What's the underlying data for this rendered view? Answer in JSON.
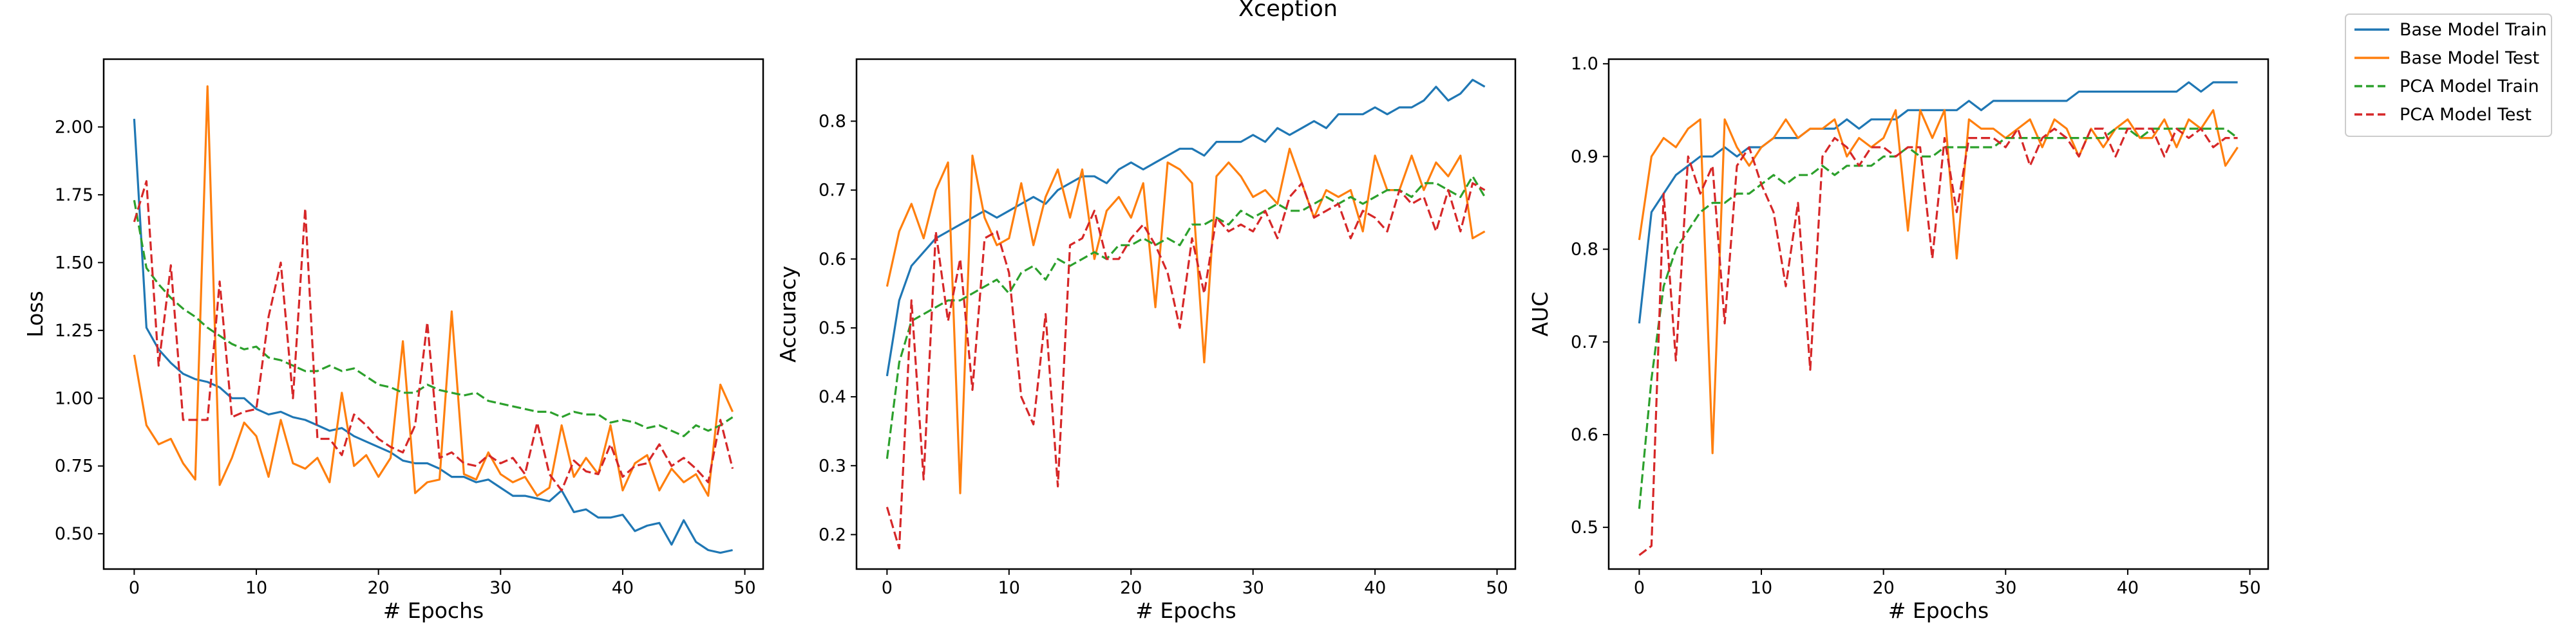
{
  "figure": {
    "title": "Xception"
  },
  "legend": {
    "placement": "outside-top-right",
    "items": [
      {
        "label": "Base Model Train",
        "color": "#1f77b4",
        "dashed": false
      },
      {
        "label": "Base Model Test",
        "color": "#ff7f0e",
        "dashed": false
      },
      {
        "label": "PCA Model Train",
        "color": "#2ca02c",
        "dashed": true
      },
      {
        "label": "PCA Model Test",
        "color": "#d62728",
        "dashed": true
      }
    ]
  },
  "chart_data": [
    {
      "type": "line",
      "title": "",
      "xlabel": "# Epochs",
      "ylabel": "Loss",
      "xlim": [
        -2.5,
        51.5
      ],
      "ylim": [
        0.37,
        2.25
      ],
      "xticks": [
        0,
        10,
        20,
        30,
        40,
        50
      ],
      "yticks": [
        0.5,
        0.75,
        1.0,
        1.25,
        1.5,
        1.75,
        2.0
      ],
      "ytick_labels": [
        "0.50",
        "0.75",
        "1.00",
        "1.25",
        "1.50",
        "1.75",
        "2.00"
      ],
      "grid": false,
      "series": [
        {
          "name": "Base Model Train",
          "color": "#1f77b4",
          "dashed": false,
          "values": [
            2.03,
            1.26,
            1.18,
            1.13,
            1.09,
            1.07,
            1.06,
            1.04,
            1.0,
            1.0,
            0.96,
            0.94,
            0.95,
            0.93,
            0.92,
            0.9,
            0.88,
            0.89,
            0.86,
            0.84,
            0.82,
            0.8,
            0.77,
            0.76,
            0.76,
            0.74,
            0.71,
            0.71,
            0.69,
            0.7,
            0.67,
            0.64,
            0.64,
            0.63,
            0.62,
            0.66,
            0.58,
            0.59,
            0.56,
            0.56,
            0.57,
            0.51,
            0.53,
            0.54,
            0.46,
            0.55,
            0.47,
            0.44,
            0.43,
            0.44
          ]
        },
        {
          "name": "Base Model Test",
          "color": "#ff7f0e",
          "dashed": false,
          "values": [
            1.16,
            0.9,
            0.83,
            0.85,
            0.76,
            0.7,
            2.15,
            0.68,
            0.78,
            0.91,
            0.86,
            0.71,
            0.92,
            0.76,
            0.74,
            0.78,
            0.69,
            1.02,
            0.75,
            0.79,
            0.71,
            0.78,
            1.21,
            0.65,
            0.69,
            0.7,
            1.32,
            0.72,
            0.7,
            0.8,
            0.72,
            0.69,
            0.71,
            0.64,
            0.67,
            0.9,
            0.71,
            0.78,
            0.72,
            0.9,
            0.66,
            0.76,
            0.79,
            0.66,
            0.74,
            0.69,
            0.72,
            0.64,
            1.05,
            0.95
          ]
        },
        {
          "name": "PCA Model Train",
          "color": "#2ca02c",
          "dashed": true,
          "values": [
            1.73,
            1.48,
            1.42,
            1.37,
            1.33,
            1.3,
            1.26,
            1.23,
            1.2,
            1.18,
            1.19,
            1.15,
            1.14,
            1.12,
            1.1,
            1.1,
            1.12,
            1.1,
            1.11,
            1.08,
            1.05,
            1.04,
            1.02,
            1.02,
            1.05,
            1.03,
            1.02,
            1.01,
            1.02,
            0.99,
            0.98,
            0.97,
            0.96,
            0.95,
            0.95,
            0.93,
            0.95,
            0.94,
            0.94,
            0.91,
            0.92,
            0.91,
            0.89,
            0.9,
            0.88,
            0.86,
            0.9,
            0.88,
            0.9,
            0.93
          ]
        },
        {
          "name": "PCA Model Test",
          "color": "#d62728",
          "dashed": true,
          "values": [
            1.65,
            1.8,
            1.12,
            1.49,
            0.92,
            0.92,
            0.92,
            1.43,
            0.93,
            0.95,
            0.96,
            1.3,
            1.5,
            1.0,
            1.7,
            0.85,
            0.85,
            0.79,
            0.94,
            0.9,
            0.85,
            0.82,
            0.8,
            0.9,
            1.28,
            0.78,
            0.8,
            0.76,
            0.75,
            0.79,
            0.76,
            0.78,
            0.72,
            0.91,
            0.72,
            0.66,
            0.77,
            0.73,
            0.72,
            0.83,
            0.71,
            0.75,
            0.76,
            0.83,
            0.75,
            0.78,
            0.74,
            0.69,
            0.92,
            0.74
          ]
        }
      ]
    },
    {
      "type": "line",
      "title": "",
      "xlabel": "# Epochs",
      "ylabel": "Accuracy",
      "xlim": [
        -2.5,
        51.5
      ],
      "ylim": [
        0.15,
        0.89
      ],
      "xticks": [
        0,
        10,
        20,
        30,
        40,
        50
      ],
      "yticks": [
        0.2,
        0.3,
        0.4,
        0.5,
        0.6,
        0.7,
        0.8
      ],
      "ytick_labels": [
        "0.2",
        "0.3",
        "0.4",
        "0.5",
        "0.6",
        "0.7",
        "0.8"
      ],
      "grid": false,
      "series": [
        {
          "name": "Base Model Train",
          "color": "#1f77b4",
          "dashed": false,
          "values": [
            0.43,
            0.54,
            0.59,
            0.61,
            0.63,
            0.64,
            0.65,
            0.66,
            0.67,
            0.66,
            0.67,
            0.68,
            0.69,
            0.68,
            0.7,
            0.71,
            0.72,
            0.72,
            0.71,
            0.73,
            0.74,
            0.73,
            0.74,
            0.75,
            0.76,
            0.76,
            0.75,
            0.77,
            0.77,
            0.77,
            0.78,
            0.77,
            0.79,
            0.78,
            0.79,
            0.8,
            0.79,
            0.81,
            0.81,
            0.81,
            0.82,
            0.81,
            0.82,
            0.82,
            0.83,
            0.85,
            0.83,
            0.84,
            0.86,
            0.85
          ]
        },
        {
          "name": "Base Model Test",
          "color": "#ff7f0e",
          "dashed": false,
          "values": [
            0.56,
            0.64,
            0.68,
            0.63,
            0.7,
            0.74,
            0.26,
            0.75,
            0.66,
            0.62,
            0.63,
            0.71,
            0.62,
            0.69,
            0.73,
            0.66,
            0.73,
            0.6,
            0.67,
            0.69,
            0.66,
            0.71,
            0.53,
            0.74,
            0.73,
            0.71,
            0.45,
            0.72,
            0.74,
            0.72,
            0.69,
            0.7,
            0.68,
            0.76,
            0.71,
            0.66,
            0.7,
            0.69,
            0.7,
            0.64,
            0.75,
            0.7,
            0.7,
            0.75,
            0.7,
            0.74,
            0.72,
            0.75,
            0.63,
            0.64
          ]
        },
        {
          "name": "PCA Model Train",
          "color": "#2ca02c",
          "dashed": true,
          "values": [
            0.31,
            0.45,
            0.51,
            0.52,
            0.53,
            0.54,
            0.54,
            0.55,
            0.56,
            0.57,
            0.55,
            0.58,
            0.59,
            0.57,
            0.6,
            0.59,
            0.6,
            0.61,
            0.6,
            0.62,
            0.62,
            0.63,
            0.62,
            0.63,
            0.62,
            0.65,
            0.65,
            0.66,
            0.65,
            0.67,
            0.66,
            0.67,
            0.68,
            0.67,
            0.67,
            0.68,
            0.69,
            0.68,
            0.69,
            0.68,
            0.69,
            0.7,
            0.7,
            0.69,
            0.71,
            0.71,
            0.7,
            0.69,
            0.72,
            0.69
          ]
        },
        {
          "name": "PCA Model Test",
          "color": "#d62728",
          "dashed": true,
          "values": [
            0.24,
            0.18,
            0.54,
            0.28,
            0.64,
            0.51,
            0.6,
            0.41,
            0.63,
            0.64,
            0.58,
            0.4,
            0.36,
            0.52,
            0.27,
            0.62,
            0.63,
            0.67,
            0.6,
            0.6,
            0.63,
            0.65,
            0.62,
            0.58,
            0.5,
            0.63,
            0.55,
            0.66,
            0.64,
            0.65,
            0.64,
            0.67,
            0.63,
            0.69,
            0.71,
            0.66,
            0.67,
            0.68,
            0.63,
            0.67,
            0.66,
            0.64,
            0.7,
            0.68,
            0.69,
            0.64,
            0.7,
            0.64,
            0.71,
            0.7
          ]
        }
      ]
    },
    {
      "type": "line",
      "title": "",
      "xlabel": "# Epochs",
      "ylabel": "AUC",
      "xlim": [
        -2.5,
        51.5
      ],
      "ylim": [
        0.455,
        1.005
      ],
      "xticks": [
        0,
        10,
        20,
        30,
        40,
        50
      ],
      "yticks": [
        0.5,
        0.6,
        0.7,
        0.8,
        0.9,
        1.0
      ],
      "ytick_labels": [
        "0.5",
        "0.6",
        "0.7",
        "0.8",
        "0.9",
        "1.0"
      ],
      "grid": false,
      "series": [
        {
          "name": "Base Model Train",
          "color": "#1f77b4",
          "dashed": false,
          "values": [
            0.72,
            0.84,
            0.86,
            0.88,
            0.89,
            0.9,
            0.9,
            0.91,
            0.9,
            0.91,
            0.91,
            0.92,
            0.92,
            0.92,
            0.93,
            0.93,
            0.93,
            0.94,
            0.93,
            0.94,
            0.94,
            0.94,
            0.95,
            0.95,
            0.95,
            0.95,
            0.95,
            0.96,
            0.95,
            0.96,
            0.96,
            0.96,
            0.96,
            0.96,
            0.96,
            0.96,
            0.97,
            0.97,
            0.97,
            0.97,
            0.97,
            0.97,
            0.97,
            0.97,
            0.97,
            0.98,
            0.97,
            0.98,
            0.98,
            0.98
          ]
        },
        {
          "name": "Base Model Test",
          "color": "#ff7f0e",
          "dashed": false,
          "values": [
            0.81,
            0.9,
            0.92,
            0.91,
            0.93,
            0.94,
            0.58,
            0.94,
            0.91,
            0.89,
            0.91,
            0.92,
            0.94,
            0.92,
            0.93,
            0.93,
            0.94,
            0.9,
            0.92,
            0.91,
            0.92,
            0.95,
            0.82,
            0.95,
            0.92,
            0.95,
            0.79,
            0.94,
            0.93,
            0.93,
            0.92,
            0.93,
            0.94,
            0.91,
            0.94,
            0.93,
            0.9,
            0.93,
            0.91,
            0.93,
            0.94,
            0.92,
            0.92,
            0.94,
            0.91,
            0.94,
            0.93,
            0.95,
            0.89,
            0.91
          ]
        },
        {
          "name": "PCA Model Train",
          "color": "#2ca02c",
          "dashed": true,
          "values": [
            0.52,
            0.66,
            0.76,
            0.8,
            0.82,
            0.84,
            0.85,
            0.85,
            0.86,
            0.86,
            0.87,
            0.88,
            0.87,
            0.88,
            0.88,
            0.89,
            0.88,
            0.89,
            0.89,
            0.89,
            0.9,
            0.9,
            0.91,
            0.9,
            0.9,
            0.91,
            0.91,
            0.91,
            0.91,
            0.91,
            0.92,
            0.92,
            0.92,
            0.92,
            0.92,
            0.92,
            0.92,
            0.92,
            0.92,
            0.93,
            0.93,
            0.92,
            0.93,
            0.93,
            0.93,
            0.93,
            0.93,
            0.93,
            0.93,
            0.92
          ]
        },
        {
          "name": "PCA Model Test",
          "color": "#d62728",
          "dashed": true,
          "values": [
            0.47,
            0.48,
            0.86,
            0.68,
            0.9,
            0.86,
            0.89,
            0.72,
            0.89,
            0.91,
            0.87,
            0.84,
            0.76,
            0.85,
            0.67,
            0.9,
            0.92,
            0.91,
            0.89,
            0.91,
            0.91,
            0.9,
            0.91,
            0.91,
            0.79,
            0.92,
            0.84,
            0.92,
            0.92,
            0.92,
            0.91,
            0.93,
            0.89,
            0.92,
            0.93,
            0.92,
            0.9,
            0.93,
            0.93,
            0.9,
            0.93,
            0.93,
            0.93,
            0.9,
            0.93,
            0.92,
            0.93,
            0.91,
            0.92,
            0.92
          ]
        }
      ]
    }
  ]
}
